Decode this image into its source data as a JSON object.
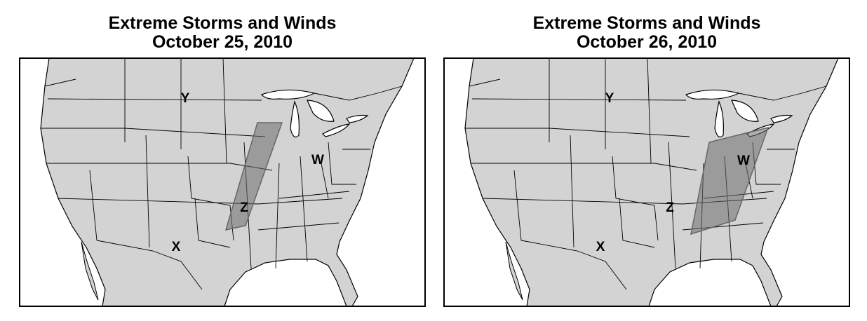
{
  "maps": [
    {
      "title": "Extreme Storms and Winds",
      "date": "October 25, 2010",
      "labels": [
        "Y",
        "W",
        "Z",
        "X"
      ]
    },
    {
      "title": "Extreme Storms and Winds",
      "date": "October 26, 2010",
      "labels": [
        "Y",
        "W",
        "Z",
        "X"
      ]
    }
  ]
}
